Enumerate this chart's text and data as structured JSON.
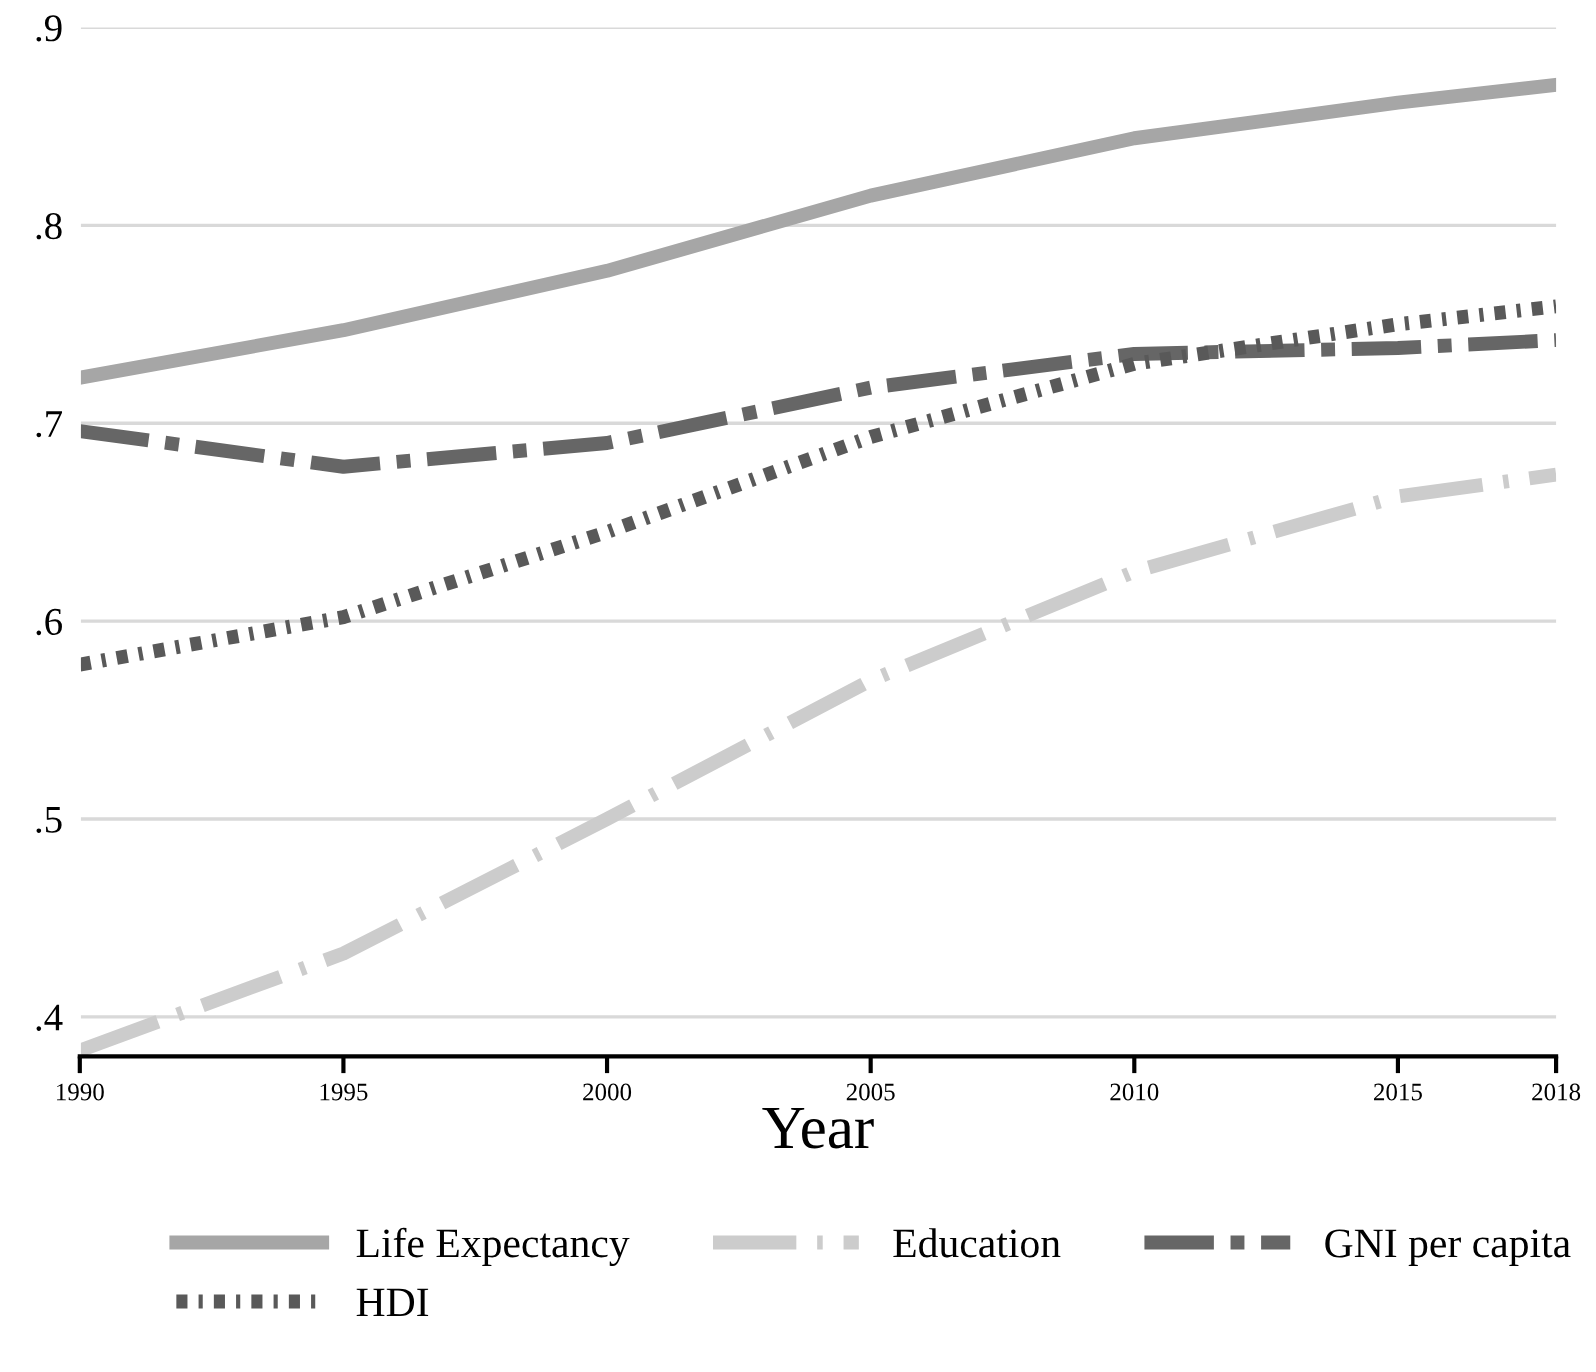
{
  "chart_data": {
    "type": "line",
    "xlabel": "Year",
    "x": [
      1990,
      1995,
      2000,
      2005,
      2010,
      2015,
      2018
    ],
    "series": [
      {
        "name": "Life Expectancy",
        "color": "#a6a6a6",
        "line_style": "solid",
        "values": [
          0.723,
          0.747,
          0.777,
          0.815,
          0.844,
          0.862,
          0.871
        ]
      },
      {
        "name": "Education",
        "color": "#cccccc",
        "line_style": "dashed",
        "values": [
          0.383,
          0.432,
          0.5,
          0.57,
          0.625,
          0.663,
          0.674
        ]
      },
      {
        "name": "GNI per capita",
        "color": "#666666",
        "line_style": "dashed",
        "values": [
          0.696,
          0.678,
          0.69,
          0.718,
          0.735,
          0.738,
          0.742
        ]
      },
      {
        "name": "HDI",
        "color": "#595959",
        "line_style": "dotted",
        "values": [
          0.578,
          0.602,
          0.645,
          0.693,
          0.73,
          0.75,
          0.759
        ]
      }
    ],
    "xlim": [
      1990,
      2018
    ],
    "xticks": [
      1990,
      1995,
      2000,
      2005,
      2010,
      2015,
      2018
    ],
    "ylim": [
      0.38,
      0.9
    ],
    "yticks": [
      {
        "value": 0.4,
        "label": ".4"
      },
      {
        "value": 0.5,
        "label": ".5"
      },
      {
        "value": 0.6,
        "label": ".6"
      },
      {
        "value": 0.7,
        "label": ".7"
      },
      {
        "value": 0.8,
        "label": ".8"
      },
      {
        "value": 0.9,
        "label": ".9"
      }
    ],
    "grid": "y",
    "legend": "bottom",
    "marker": "none"
  }
}
